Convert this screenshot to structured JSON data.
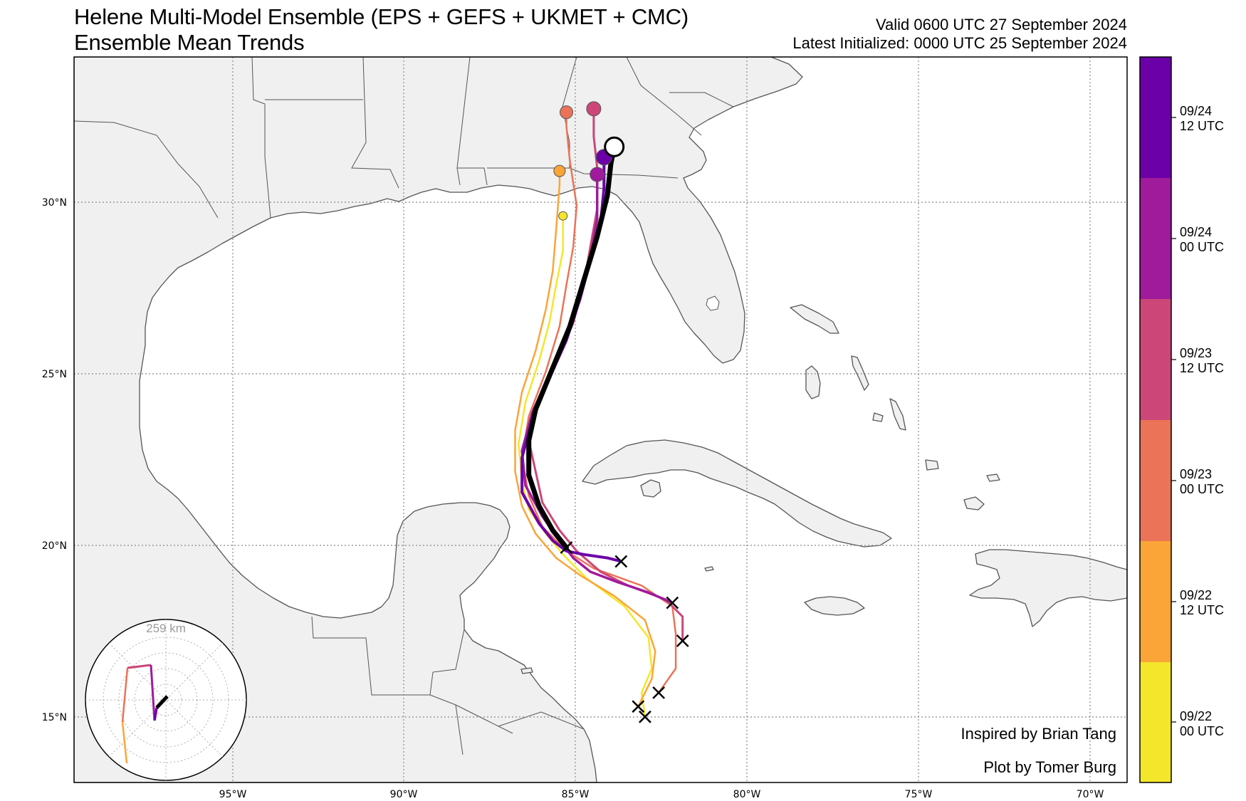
{
  "title": {
    "line1": "Helene Multi-Model Ensemble (EPS + GEFS + UKMET + CMC)",
    "line2": "Ensemble Mean Trends"
  },
  "valid": {
    "line1": "Valid 0600 UTC 27 September 2024",
    "line2": "Latest Initialized: 0000 UTC 25 September 2024"
  },
  "credits": {
    "inspired": "Inspired by Brian Tang",
    "plot_by": "Plot by Tomer Burg"
  },
  "lat_ticks": [
    "30°N",
    "25°N",
    "20°N",
    "15°N"
  ],
  "lon_ticks": [
    "95°W",
    "90°W",
    "85°W",
    "80°W",
    "75°W",
    "70°W"
  ],
  "colorbar": {
    "colors": [
      "#f4e62a",
      "#fba538",
      "#eb7357",
      "#cc4778",
      "#a01a9c",
      "#6c00a8"
    ],
    "ticks": [
      {
        "line1": "09/22",
        "line2": "00 UTC"
      },
      {
        "line1": "09/22",
        "line2": "12 UTC"
      },
      {
        "line1": "09/23",
        "line2": "00 UTC"
      },
      {
        "line1": "09/23",
        "line2": "12 UTC"
      },
      {
        "line1": "09/24",
        "line2": "00 UTC"
      },
      {
        "line1": "09/24",
        "line2": "12 UTC"
      }
    ]
  },
  "inset": {
    "range_label": "259 km"
  },
  "colors": {
    "land": "#f0f0f0",
    "ocean": "#ffffff",
    "border": "#555555",
    "grid": "#888888",
    "latest_track": "#000000"
  },
  "map_data": {
    "extent": {
      "lon": [
        -99.6,
        -68.8
      ],
      "lat": [
        13.0,
        34.0
      ]
    },
    "tracks": [
      {
        "init": "09/22 00 UTC",
        "color": "#f4e62a",
        "width": 2.5,
        "points": [
          [
            -82.9,
            14.9
          ],
          [
            -83.0,
            15.6
          ],
          [
            -82.7,
            16.3
          ],
          [
            -82.8,
            17.2
          ],
          [
            -83.5,
            18.1
          ],
          [
            -84.6,
            18.9
          ],
          [
            -85.3,
            19.6
          ],
          [
            -85.8,
            20.2
          ],
          [
            -86.3,
            20.9
          ],
          [
            -86.5,
            21.7
          ],
          [
            -86.6,
            22.8
          ],
          [
            -86.4,
            24.0
          ],
          [
            -86.0,
            25.2
          ],
          [
            -85.7,
            26.3
          ],
          [
            -85.5,
            27.4
          ],
          [
            -85.3,
            28.4
          ],
          [
            -85.3,
            29.4
          ]
        ]
      },
      {
        "init": "09/22 12 UTC",
        "color": "#fba538",
        "width": 2.5,
        "points": [
          [
            -83.1,
            15.2
          ],
          [
            -82.7,
            16.0
          ],
          [
            -82.6,
            16.8
          ],
          [
            -82.9,
            17.7
          ],
          [
            -83.8,
            18.4
          ],
          [
            -84.8,
            19.0
          ],
          [
            -85.5,
            19.5
          ],
          [
            -86.1,
            20.2
          ],
          [
            -86.5,
            21.0
          ],
          [
            -86.7,
            22.0
          ],
          [
            -86.7,
            23.2
          ],
          [
            -86.5,
            24.3
          ],
          [
            -86.1,
            25.5
          ],
          [
            -85.8,
            26.7
          ],
          [
            -85.6,
            27.8
          ],
          [
            -85.5,
            29.0
          ],
          [
            -85.4,
            30.3
          ],
          [
            -85.4,
            30.7
          ]
        ]
      },
      {
        "init": "09/23 00 UTC",
        "color": "#eb7357",
        "width": 2.5,
        "points": [
          [
            -82.5,
            15.6
          ],
          [
            -82.0,
            16.3
          ],
          [
            -82.0,
            17.3
          ],
          [
            -82.1,
            18.1
          ],
          [
            -83.0,
            18.7
          ],
          [
            -84.4,
            19.2
          ],
          [
            -85.2,
            19.7
          ],
          [
            -85.9,
            20.4
          ],
          [
            -86.3,
            21.3
          ],
          [
            -86.5,
            22.4
          ],
          [
            -86.3,
            23.6
          ],
          [
            -85.8,
            24.9
          ],
          [
            -85.4,
            26.2
          ],
          [
            -85.2,
            27.4
          ],
          [
            -85.0,
            28.5
          ],
          [
            -84.9,
            29.7
          ],
          [
            -85.1,
            31.0
          ],
          [
            -85.2,
            32.0
          ],
          [
            -85.2,
            32.4
          ]
        ]
      },
      {
        "init": "09/23 12 UTC",
        "color": "#cc4778",
        "width": 3,
        "points": [
          [
            -81.8,
            17.1
          ],
          [
            -81.8,
            17.8
          ],
          [
            -82.3,
            18.3
          ],
          [
            -83.4,
            18.7
          ],
          [
            -84.2,
            19.1
          ],
          [
            -84.9,
            19.7
          ],
          [
            -85.4,
            20.3
          ],
          [
            -85.9,
            21.1
          ],
          [
            -86.1,
            22.0
          ],
          [
            -86.3,
            22.9
          ],
          [
            -86.0,
            24.0
          ],
          [
            -85.5,
            25.2
          ],
          [
            -85.0,
            26.3
          ],
          [
            -84.7,
            27.4
          ],
          [
            -84.5,
            28.5
          ],
          [
            -84.3,
            29.6
          ],
          [
            -84.3,
            30.8
          ],
          [
            -84.4,
            31.7
          ],
          [
            -84.4,
            32.5
          ]
        ]
      },
      {
        "init": "09/24 00 UTC",
        "color": "#a01a9c",
        "width": 3.5,
        "points": [
          [
            -82.1,
            18.2
          ],
          [
            -82.8,
            18.5
          ],
          [
            -83.7,
            18.8
          ],
          [
            -84.5,
            19.1
          ],
          [
            -85.0,
            19.5
          ],
          [
            -85.4,
            20.0
          ],
          [
            -85.9,
            20.7
          ],
          [
            -86.4,
            21.6
          ],
          [
            -86.5,
            22.6
          ],
          [
            -86.2,
            23.7
          ],
          [
            -85.7,
            24.8
          ],
          [
            -85.2,
            26.0
          ],
          [
            -84.8,
            27.1
          ],
          [
            -84.5,
            28.2
          ],
          [
            -84.3,
            29.3
          ],
          [
            -84.3,
            30.3
          ],
          [
            -84.3,
            30.6
          ]
        ]
      },
      {
        "init": "09/24 12 UTC",
        "color": "#6c00a8",
        "width": 4,
        "points": [
          [
            -83.6,
            19.4
          ],
          [
            -84.0,
            19.5
          ],
          [
            -84.7,
            19.6
          ],
          [
            -85.2,
            19.7
          ],
          [
            -85.6,
            20.0
          ],
          [
            -86.0,
            20.5
          ],
          [
            -86.5,
            21.4
          ],
          [
            -86.5,
            22.4
          ],
          [
            -86.2,
            23.5
          ],
          [
            -85.7,
            24.7
          ],
          [
            -85.2,
            25.8
          ],
          [
            -84.8,
            27.0
          ],
          [
            -84.5,
            28.1
          ],
          [
            -84.2,
            29.2
          ],
          [
            -84.1,
            30.2
          ],
          [
            -84.1,
            31.1
          ]
        ]
      },
      {
        "init": "09/25 00 UTC",
        "color": "#000000",
        "width": 7,
        "points": [
          [
            -85.2,
            19.8
          ],
          [
            -85.6,
            20.3
          ],
          [
            -86.0,
            21.0
          ],
          [
            -86.3,
            21.9
          ],
          [
            -86.3,
            22.9
          ],
          [
            -86.1,
            23.8
          ],
          [
            -85.6,
            25.0
          ],
          [
            -85.1,
            26.2
          ],
          [
            -84.7,
            27.5
          ],
          [
            -84.3,
            28.8
          ],
          [
            -84.0,
            30.0
          ],
          [
            -83.9,
            30.9
          ],
          [
            -83.8,
            31.4
          ]
        ]
      }
    ]
  }
}
